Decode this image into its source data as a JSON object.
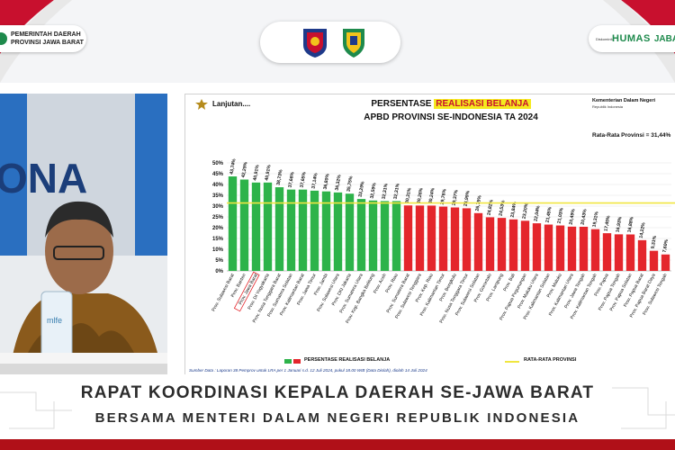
{
  "header": {
    "gov_line1": "PEMERINTAH DAERAH",
    "gov_line2": "PROVINSI JAWA BARAT",
    "humas_small": "Diskominfo",
    "humas": "HUMAS",
    "jabar": "JABAR",
    "logos": [
      "kemendagri-emblem",
      "jawa-barat-emblem"
    ]
  },
  "slide": {
    "lanjutan": "Lanjutan....",
    "title_prefix": "PERSENTASE ",
    "title_highlight": "REALISASI BELANJA",
    "subtitle": "APBD PROVINSI SE-INDONESIA TA 2024",
    "ministry": "Kementerian Dalam Negeri",
    "ministry_sub": "Republik Indonesia",
    "average_label": "Rata-Rata Provinsi = 31,44%",
    "legend_series": "PERSENTASE REALISASI BELANJA",
    "legend_avg": "RATA-RATA PROVINSI",
    "source": "Sumber Data : Laporan 38 Pemprov untuk LRA per 1 Januari s.d. 12 Juli 2024, pukul 18.00 WIB (Data Diolah), diolah 14 Juli 2024"
  },
  "chart_data": {
    "type": "bar",
    "ylim": [
      0,
      50
    ],
    "yticks": [
      "0%",
      "5%",
      "10%",
      "15%",
      "20%",
      "25%",
      "30%",
      "35%",
      "40%",
      "45%",
      "50%"
    ],
    "average": 31.44,
    "highlighted": "Prov. Jawa Barat",
    "colors": {
      "above": "#2db34a",
      "below": "#e4262c",
      "average_line": "#f0e640"
    },
    "categories": [
      "Prov. Sulawesi Barat",
      "Prov. Banten",
      "Prov. Jawa Barat",
      "Prov. DI Yogyakarta",
      "Prov. Nusa Tenggara Barat",
      "Prov. Sumatera Selatan",
      "Prov. Kalimantan Barat",
      "Prov. Jawa Timur",
      "Prov. Jambi",
      "Prov. Sulawesi Utara",
      "Prov. DKI Jakarta",
      "Prov. Sumatera Utara",
      "Prov. Kep. Bangka Belitung",
      "Prov. Aceh",
      "Prov. Riau",
      "Prov. Sumatera Barat",
      "Prov. Sulawesi Tenggara",
      "Prov. Kep. Riau",
      "Prov. Kalimantan Timur",
      "Prov. Bengkulu",
      "Prov. Nusa Tenggara Timur",
      "Prov. Sulawesi Selatan",
      "Prov. Gorontalo",
      "Prov. Lampung",
      "Prov. Bali",
      "Prov. Papua Pegunungan",
      "Prov. Maluku Utara",
      "Prov. Kalimantan Selatan",
      "Prov. Maluku",
      "Prov. Kalimantan Utara",
      "Prov. Jawa Tengah",
      "Prov. Kalimantan Tengah",
      "Prov. Papua",
      "Prov. Papua Tengah",
      "Prov. Papua Selatan",
      "Prov. Papua Barat",
      "Prov. Papua Barat Daya",
      "Prov. Sulawesi Tengah"
    ],
    "values": [
      43.74,
      42.29,
      40.91,
      40.91,
      38.73,
      37.66,
      37.65,
      37.14,
      36.8,
      36.32,
      35.75,
      33.29,
      32.59,
      32.31,
      32.31,
      30.31,
      30.26,
      30.24,
      29.76,
      29.37,
      28.99,
      26.75,
      24.82,
      24.53,
      23.84,
      23.2,
      22.04,
      21.45,
      21.03,
      20.49,
      20.43,
      19.31,
      17.45,
      16.93,
      16.88,
      14.22,
      9.31,
      7.6
    ],
    "labels": [
      "43,74%",
      "42,29%",
      "40,91%",
      "40,91%",
      "38,73%",
      "37,66%",
      "37,65%",
      "37,14%",
      "36,80%",
      "36,32%",
      "35,75%",
      "33,29%",
      "32,59%",
      "32,31%",
      "32,31%",
      "30,31%",
      "30,26%",
      "30,24%",
      "29,76%",
      "29,37%",
      "28,99%",
      "26,75%",
      "24,82%",
      "24,53%",
      "23,84%",
      "23,20%",
      "22,04%",
      "21,45%",
      "21,03%",
      "20,49%",
      "20,43%",
      "19,31%",
      "17,45%",
      "16,93%",
      "16,88%",
      "14,22%",
      "9,31%",
      "7,60%"
    ]
  },
  "captions": {
    "line1": "RAPAT KOORDINASI KEPALA DAERAH SE-JAWA BARAT",
    "line2": "BERSAMA MENTERI DALAM NEGERI REPUBLIK INDONESIA"
  }
}
